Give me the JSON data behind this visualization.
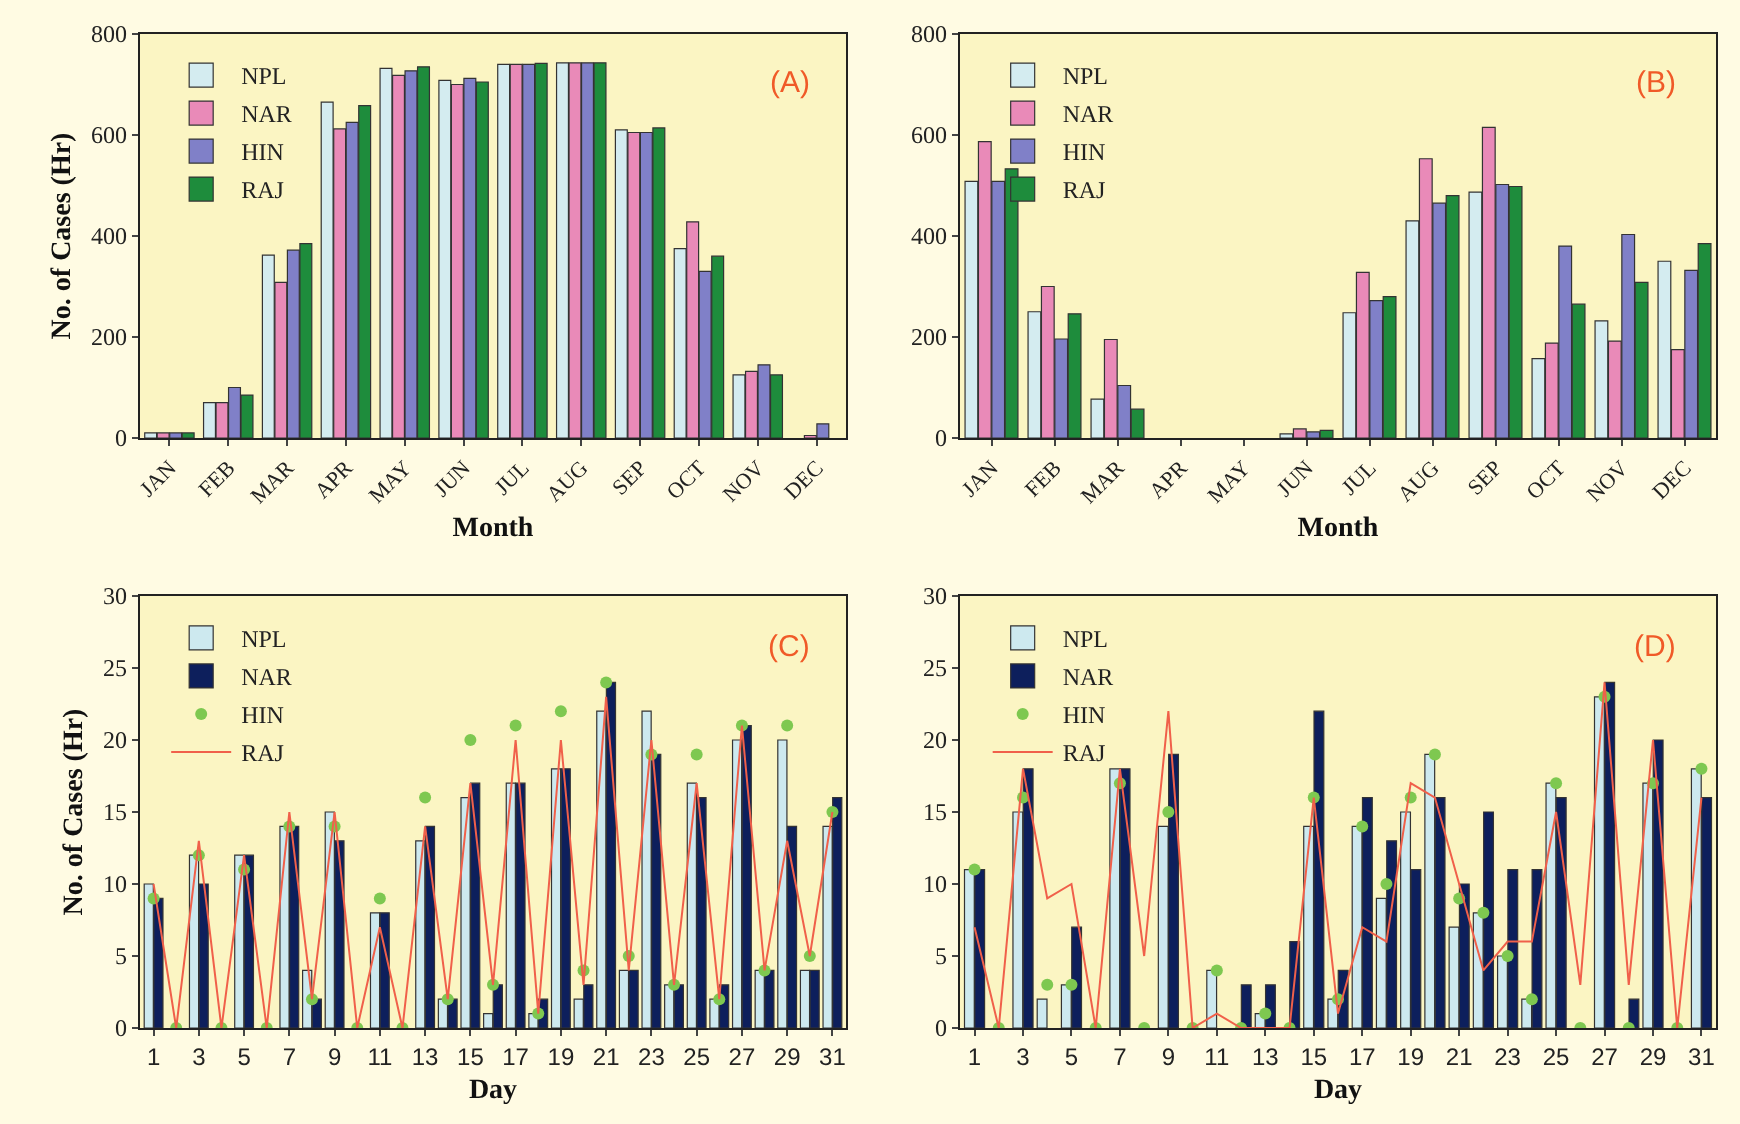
{
  "chart_data": [
    {
      "type": "bar",
      "xlabel": "Month",
      "ylabel": "No. of Cases (Hr)",
      "annotations": [
        "(A)"
      ],
      "categories": [
        "JAN",
        "FEB",
        "MAR",
        "APR",
        "MAY",
        "JUN",
        "JUL",
        "AUG",
        "SEP",
        "OCT",
        "NOV",
        "DEC"
      ],
      "series": [
        {
          "name": "NPL",
          "color": "#d4ecf0",
          "values": [
            10,
            70,
            362,
            665,
            732,
            708,
            740,
            743,
            610,
            375,
            125,
            0
          ]
        },
        {
          "name": "NAR",
          "color": "#e98ab8",
          "values": [
            10,
            70,
            308,
            612,
            718,
            700,
            740,
            743,
            605,
            428,
            132,
            5
          ]
        },
        {
          "name": "HIN",
          "color": "#8080c8",
          "values": [
            10,
            100,
            372,
            625,
            727,
            712,
            740,
            743,
            605,
            330,
            145,
            28
          ]
        },
        {
          "name": "RAJ",
          "color": "#1e8c3c",
          "values": [
            10,
            85,
            385,
            658,
            735,
            705,
            742,
            743,
            614,
            360,
            125,
            0
          ]
        }
      ],
      "ylim": [
        0,
        800
      ],
      "yticks": [
        0,
        200,
        400,
        600,
        800
      ],
      "grid": false,
      "legend": "top left"
    },
    {
      "type": "bar",
      "xlabel": "Month",
      "annotations": [
        "(B)"
      ],
      "categories": [
        "JAN",
        "FEB",
        "MAR",
        "APR",
        "MAY",
        "JUN",
        "JUL",
        "AUG",
        "SEP",
        "OCT",
        "NOV",
        "DEC"
      ],
      "series": [
        {
          "name": "NPL",
          "color": "#d4ecf0",
          "values": [
            508,
            250,
            77,
            0,
            0,
            8,
            248,
            430,
            487,
            157,
            232,
            350
          ]
        },
        {
          "name": "NAR",
          "color": "#e98ab8",
          "values": [
            587,
            300,
            195,
            0,
            null,
            18,
            328,
            553,
            615,
            188,
            192,
            175
          ]
        },
        {
          "name": "HIN",
          "color": "#8080c8",
          "values": [
            508,
            196,
            104,
            0,
            0,
            12,
            272,
            465,
            502,
            380,
            403,
            332
          ]
        },
        {
          "name": "RAJ",
          "color": "#1e8c3c",
          "values": [
            533,
            246,
            57,
            0,
            0,
            15,
            280,
            480,
            498,
            265,
            308,
            385
          ]
        }
      ],
      "ylim": [
        0,
        800
      ],
      "yticks": [
        0,
        200,
        400,
        600,
        800
      ],
      "grid": false,
      "legend": "top left"
    },
    {
      "type": "bar",
      "xlabel": "Day",
      "ylabel": "No. of Cases (Hr)",
      "annotations": [
        "(C)"
      ],
      "x": [
        1,
        2,
        3,
        4,
        5,
        6,
        7,
        8,
        9,
        10,
        11,
        12,
        13,
        14,
        15,
        16,
        17,
        18,
        19,
        20,
        21,
        22,
        23,
        24,
        25,
        26,
        27,
        28,
        29,
        30,
        31
      ],
      "series": [
        {
          "name": "NPL",
          "type": "bar",
          "color": "#cde9ef",
          "values": [
            10,
            0,
            12,
            0,
            12,
            0,
            14,
            4,
            15,
            0,
            8,
            0,
            13,
            2,
            16,
            1,
            17,
            1,
            18,
            2,
            22,
            4,
            22,
            3,
            17,
            2,
            20,
            4,
            20,
            4,
            14
          ]
        },
        {
          "name": "NAR",
          "type": "bar",
          "color": "#0d1f5c",
          "values": [
            9,
            0,
            10,
            0,
            12,
            0,
            14,
            2,
            13,
            0,
            8,
            0,
            14,
            2,
            17,
            3,
            17,
            2,
            18,
            3,
            24,
            4,
            19,
            3,
            16,
            3,
            21,
            4,
            14,
            4,
            16
          ]
        },
        {
          "name": "HIN",
          "type": "scatter",
          "color": "#7ec850",
          "marker": "circle",
          "values": [
            9,
            0,
            12,
            0,
            11,
            0,
            14,
            2,
            14,
            0,
            9,
            0,
            16,
            2,
            20,
            3,
            21,
            1,
            22,
            4,
            24,
            5,
            19,
            3,
            19,
            2,
            21,
            4,
            21,
            5,
            15
          ]
        },
        {
          "name": "RAJ",
          "type": "line",
          "color": "#f0604a",
          "marker": "none",
          "line_style": "solid",
          "values": [
            10,
            0,
            13,
            0,
            12,
            0,
            15,
            2,
            15,
            0,
            7,
            0,
            14,
            2,
            17,
            3,
            20,
            1,
            20,
            3,
            23,
            4,
            20,
            3,
            17,
            2,
            21,
            4,
            13,
            5,
            15
          ]
        }
      ],
      "xlim": [
        0.4,
        31.6
      ],
      "xticks": [
        1,
        3,
        5,
        7,
        9,
        11,
        13,
        15,
        17,
        19,
        21,
        23,
        25,
        27,
        29,
        31
      ],
      "ylim": [
        0,
        30
      ],
      "yticks": [
        0,
        5,
        10,
        15,
        20,
        25,
        30
      ],
      "grid": false,
      "legend": "top left"
    },
    {
      "type": "bar",
      "xlabel": "Day",
      "annotations": [
        "(D)"
      ],
      "x": [
        1,
        2,
        3,
        4,
        5,
        6,
        7,
        8,
        9,
        10,
        11,
        12,
        13,
        14,
        15,
        16,
        17,
        18,
        19,
        20,
        21,
        22,
        23,
        24,
        25,
        26,
        27,
        28,
        29,
        30,
        31
      ],
      "series": [
        {
          "name": "NPL",
          "type": "bar",
          "color": "#cde9ef",
          "values": [
            11,
            0,
            15,
            2,
            3,
            0,
            18,
            0,
            14,
            0,
            4,
            0,
            1,
            0,
            14,
            2,
            14,
            9,
            15,
            19,
            7,
            8,
            5,
            2,
            17,
            0,
            23,
            0,
            17,
            0,
            18
          ]
        },
        {
          "name": "NAR",
          "type": "bar",
          "color": "#0d1f5c",
          "values": [
            11,
            0,
            18,
            0,
            7,
            0,
            18,
            0,
            19,
            0,
            0,
            3,
            3,
            6,
            22,
            4,
            16,
            13,
            11,
            16,
            10,
            15,
            11,
            11,
            16,
            0,
            24,
            2,
            20,
            0,
            16
          ]
        },
        {
          "name": "HIN",
          "type": "scatter",
          "color": "#7ec850",
          "marker": "circle",
          "values": [
            11,
            0,
            16,
            3,
            3,
            0,
            17,
            0,
            15,
            0,
            4,
            0,
            1,
            0,
            16,
            2,
            14,
            10,
            16,
            19,
            9,
            8,
            5,
            2,
            17,
            0,
            23,
            0,
            17,
            0,
            18
          ]
        },
        {
          "name": "RAJ",
          "type": "line",
          "color": "#f0604a",
          "marker": "none",
          "line_style": "solid",
          "values": [
            7,
            0,
            18,
            9,
            10,
            0,
            18,
            5,
            22,
            0,
            1,
            0,
            0,
            0,
            16,
            1,
            7,
            6,
            17,
            16,
            10,
            4,
            6,
            6,
            15,
            3,
            24,
            3,
            20,
            0,
            16
          ]
        }
      ],
      "xlim": [
        0.4,
        31.6
      ],
      "xticks": [
        1,
        3,
        5,
        7,
        9,
        11,
        13,
        15,
        17,
        19,
        21,
        23,
        25,
        27,
        29,
        31
      ],
      "ylim": [
        0,
        30
      ],
      "yticks": [
        0,
        5,
        10,
        15,
        20,
        25,
        30
      ],
      "grid": false,
      "legend": "top left"
    }
  ]
}
